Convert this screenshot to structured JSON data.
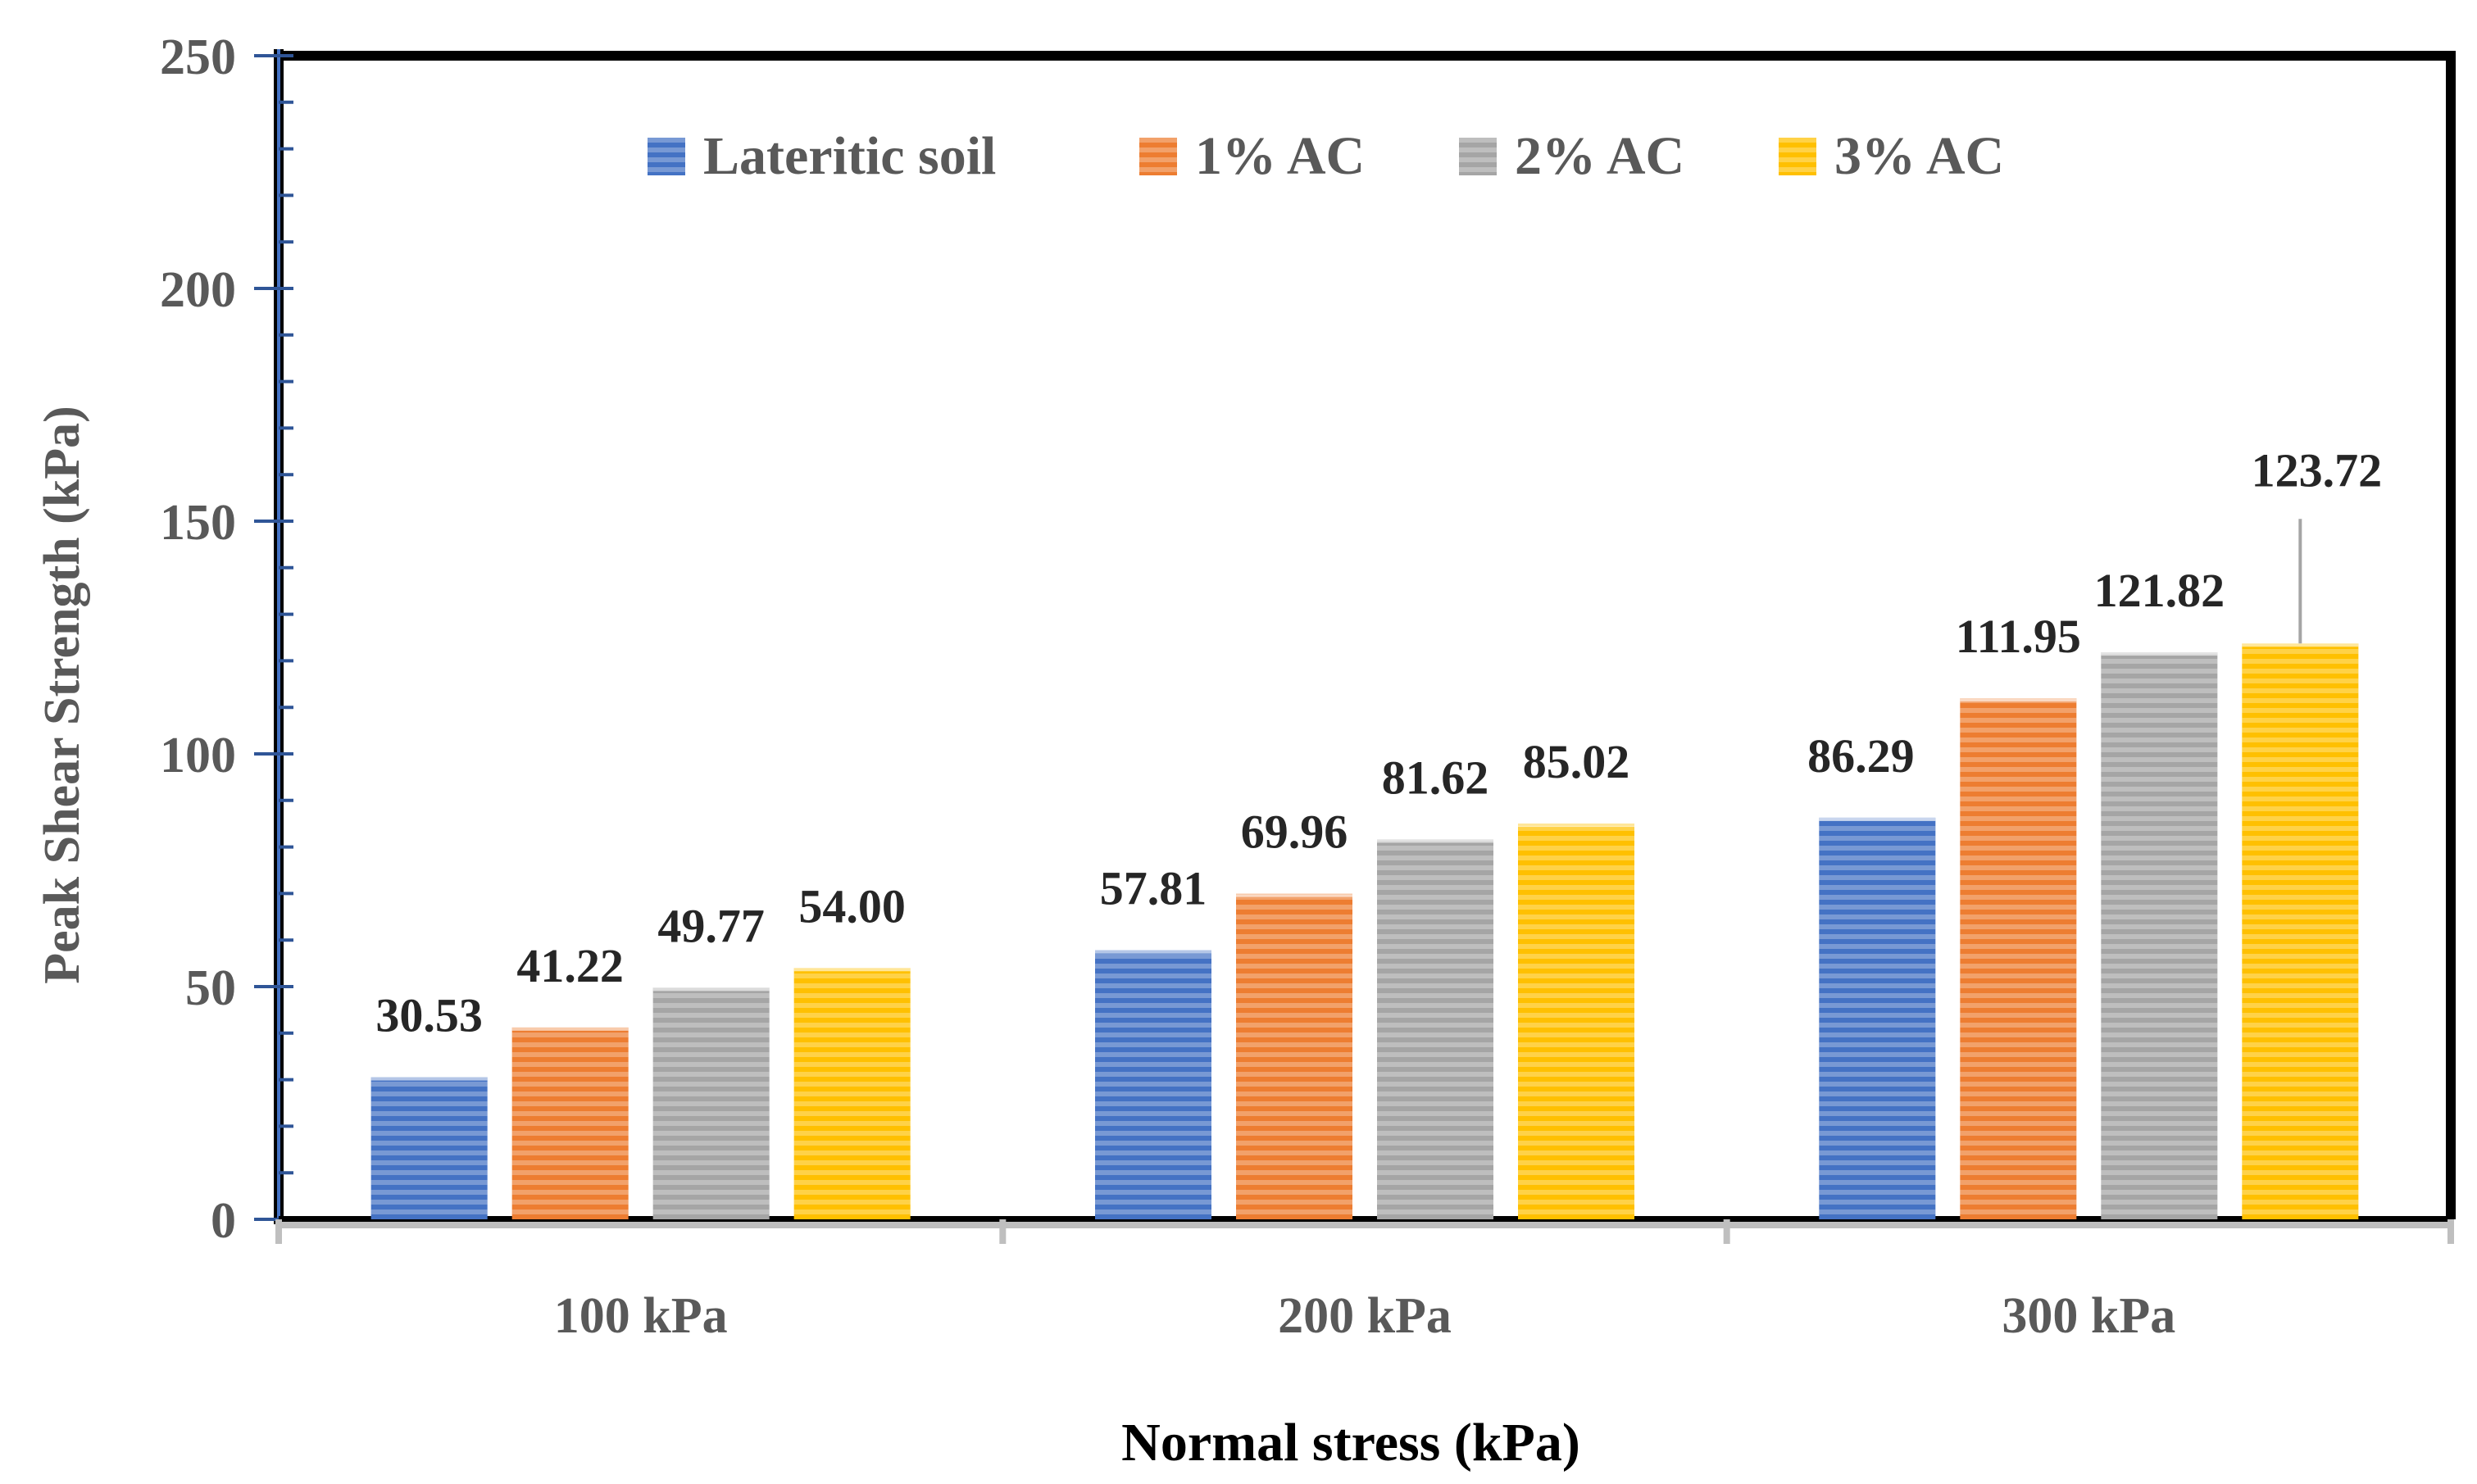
{
  "chart_data": {
    "type": "bar",
    "title": "",
    "xlabel": "Normal stress (kPa)",
    "ylabel": "Peak Shear Strength (kPa)",
    "ylim": [
      0,
      250
    ],
    "yticks": [
      0,
      50,
      100,
      150,
      200,
      250
    ],
    "categories": [
      "100 kPa",
      "200 kPa",
      "300 kPa"
    ],
    "legend_position": "top-center",
    "grid": false,
    "series": [
      {
        "name": "Lateritic soil",
        "color": "#4472C4",
        "values": [
          30.53,
          57.81,
          86.29
        ],
        "labels": [
          "30.53",
          "57.81",
          "86.29"
        ]
      },
      {
        "name": "1% AC",
        "color": "#ED7D31",
        "values": [
          41.22,
          69.96,
          111.95
        ],
        "labels": [
          "41.22",
          "69.96",
          "111.95"
        ]
      },
      {
        "name": "2% AC",
        "color": "#A5A5A5",
        "values": [
          49.77,
          81.62,
          121.82
        ],
        "labels": [
          "49.77",
          "81.62",
          "121.82"
        ]
      },
      {
        "name": "3% AC",
        "color": "#FFC000",
        "values": [
          54.0,
          85.02,
          123.72
        ],
        "labels": [
          "54.00",
          "85.02",
          "123.72"
        ]
      }
    ]
  }
}
